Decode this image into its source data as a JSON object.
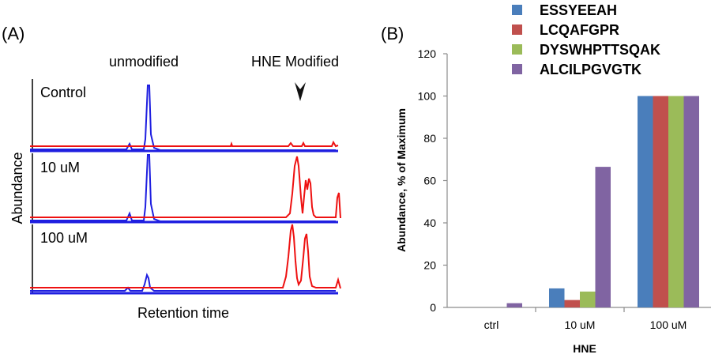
{
  "panel_a": {
    "panel_label": "(A)",
    "peak_label_unmodified": "unmodified",
    "peak_label_modified": "HNE Modified",
    "y_axis_label": "Abundance",
    "x_axis_label": "Retention time",
    "traces": [
      {
        "label": "Control"
      },
      {
        "label": "10 uM"
      },
      {
        "label": "100 uM"
      }
    ],
    "colors": {
      "unmodified": "#1f1fe0",
      "modified": "#ee1111",
      "baseline": "#1f1fe0"
    }
  },
  "chart_data": {
    "type": "bar",
    "panel_label": "(B)",
    "categories": [
      "ctrl",
      "10 uM",
      "100 uM"
    ],
    "series": [
      {
        "name": "ESSYEEAH",
        "color": "#4a7ebb",
        "values": [
          0,
          9,
          100
        ]
      },
      {
        "name": "LCQAFGPR",
        "color": "#c0504d",
        "values": [
          0,
          3.5,
          100
        ]
      },
      {
        "name": "DYSWHPTTSQAK",
        "color": "#9bbb59",
        "values": [
          0,
          7.5,
          100
        ]
      },
      {
        "name": "ALCILPGVGTK",
        "color": "#8064a2",
        "values": [
          2,
          66.5,
          100
        ]
      }
    ],
    "ylabel": "Abundance, % of Maximum",
    "xlabel": "HNE",
    "ylim": [
      0,
      120
    ],
    "yticks": [
      0,
      20,
      40,
      60,
      80,
      100,
      120
    ],
    "grid": false,
    "legend_position": "top"
  }
}
